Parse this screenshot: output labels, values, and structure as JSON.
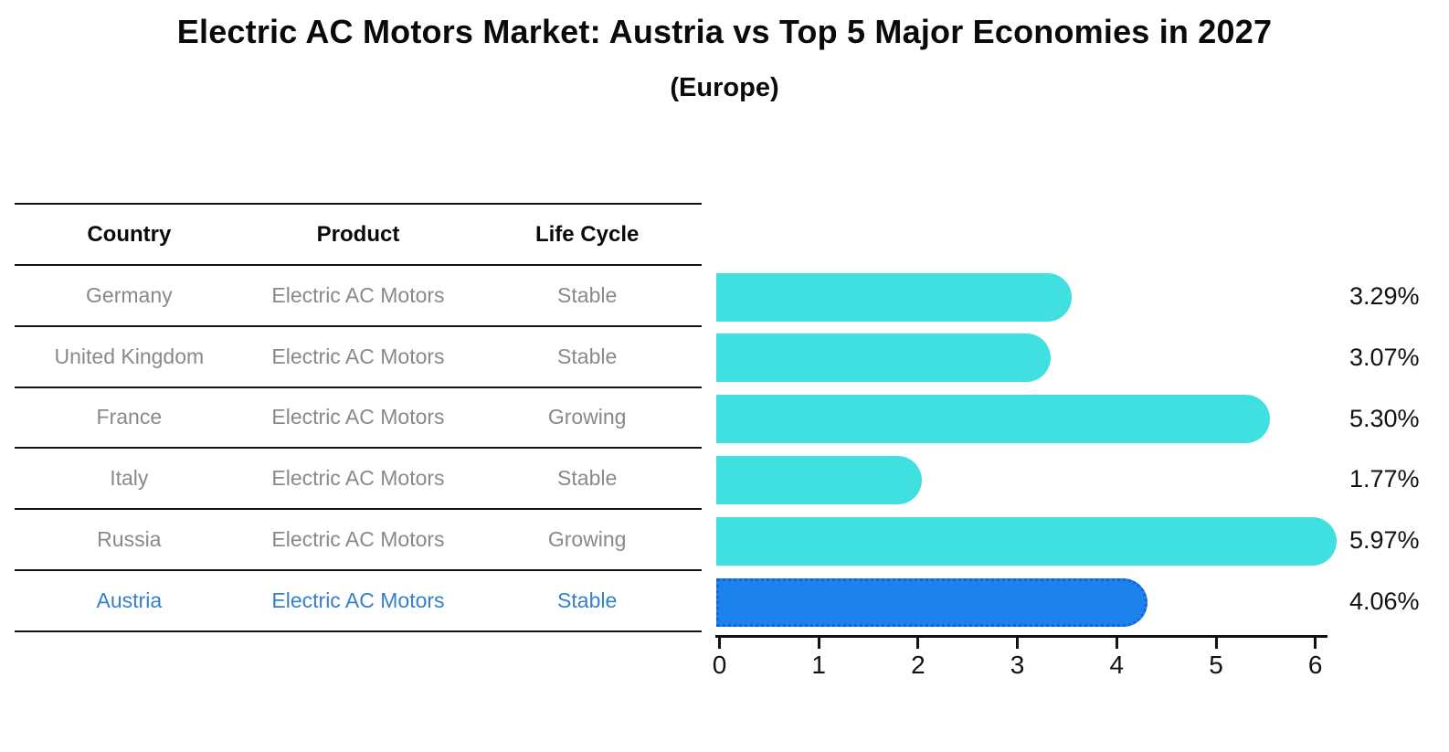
{
  "title": "Electric AC Motors Market: Austria vs Top 5 Major Economies in 2027",
  "subtitle": "(Europe)",
  "table": {
    "headers": [
      "Country",
      "Product",
      "Life Cycle"
    ],
    "rows": [
      {
        "country": "Germany",
        "product": "Electric AC Motors",
        "life_cycle": "Stable",
        "highlight": false
      },
      {
        "country": "United Kingdom",
        "product": "Electric AC Motors",
        "life_cycle": "Stable",
        "highlight": false
      },
      {
        "country": "France",
        "product": "Electric AC Motors",
        "life_cycle": "Growing",
        "highlight": false
      },
      {
        "country": "Italy",
        "product": "Electric AC Motors",
        "life_cycle": "Stable",
        "highlight": false
      },
      {
        "country": "Russia",
        "product": "Electric AC Motors",
        "life_cycle": "Growing",
        "highlight": false
      },
      {
        "country": "Austria",
        "product": "Electric AC Motors",
        "life_cycle": "Stable",
        "highlight": true
      }
    ]
  },
  "chart_data": {
    "type": "bar",
    "orientation": "horizontal",
    "title": "Electric AC Motors Market: Austria vs Top 5 Major Economies in 2027",
    "subtitle": "(Europe)",
    "categories": [
      "Germany",
      "United Kingdom",
      "France",
      "Italy",
      "Russia",
      "Austria"
    ],
    "values": [
      3.29,
      3.07,
      5.3,
      1.77,
      5.97,
      4.06
    ],
    "value_labels": [
      "3.29%",
      "3.07%",
      "5.30%",
      "1.77%",
      "5.97%",
      "4.06%"
    ],
    "x_ticks": [
      "0",
      "1",
      "2",
      "3",
      "4",
      "5",
      "6"
    ],
    "xlim": [
      0,
      6.2
    ],
    "grid": false,
    "legend": "none",
    "highlight_category": "Austria",
    "colors": {
      "bar": "#40e0e0",
      "highlight_bar": "#1b82ee",
      "highlight_border": "#1565d0",
      "table_text": "#898989",
      "highlight_text": "#3380cc",
      "axis": "#111111"
    }
  }
}
